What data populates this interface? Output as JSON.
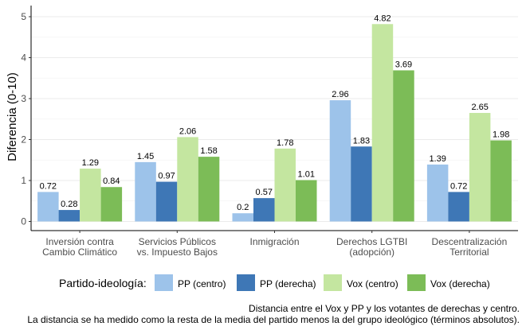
{
  "chart_data": {
    "type": "bar",
    "ylabel": "Diferencia (0-10)",
    "xlabel": "",
    "ylim": [
      -0.25,
      5.2
    ],
    "yticks": [
      0,
      1,
      2,
      3,
      4,
      5
    ],
    "grid": true,
    "legend_position": "bottom",
    "legend_title": "Partido-ideología:",
    "categories": [
      [
        "Inversión contra",
        "Cambio Climático"
      ],
      [
        "Servicios Públicos",
        "vs. Impuesto Bajos"
      ],
      [
        "Inmigración"
      ],
      [
        "Derechos LGTBI",
        "(adopción)"
      ],
      [
        "Descentralización",
        "Territorial"
      ]
    ],
    "series": [
      {
        "name": "PP (centro)",
        "color": "#9dc3ea",
        "values": [
          0.72,
          1.45,
          0.2,
          2.96,
          1.39
        ],
        "labels": [
          "0.72",
          "1.45",
          "0.2",
          "2.96",
          "1.39"
        ]
      },
      {
        "name": "PP (derecha)",
        "color": "#3e77b6",
        "values": [
          0.28,
          0.97,
          0.57,
          1.83,
          0.72
        ],
        "labels": [
          "0.28",
          "0.97",
          "0.57",
          "1.83",
          "0.72"
        ]
      },
      {
        "name": "Vox (centro)",
        "color": "#c4e6a0",
        "values": [
          1.29,
          2.06,
          1.78,
          4.82,
          2.65
        ],
        "labels": [
          "1.29",
          "2.06",
          "1.78",
          "4.82",
          "2.65"
        ]
      },
      {
        "name": "Vox (derecha)",
        "color": "#7cbc57",
        "values": [
          0.84,
          1.58,
          1.01,
          3.69,
          1.98
        ],
        "labels": [
          "0.84",
          "1.58",
          "1.01",
          "3.69",
          "1.98"
        ]
      }
    ],
    "caption": [
      "Distancia entre el Vox y PP y los votantes de derechas y centro.",
      "La distancia se ha medido como la resta de la media del partido menos la del grupo ideológico (términos absolutos)."
    ]
  }
}
